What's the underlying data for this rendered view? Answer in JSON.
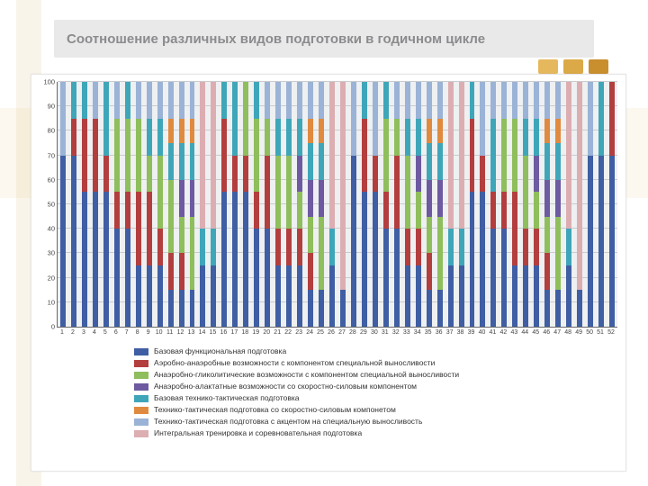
{
  "title": "Соотношение различных видов подготовки в годичном цикле",
  "accent_color": "#e1b45e",
  "chart": {
    "type": "stacked-bar",
    "ylim": [
      0,
      100
    ],
    "ytick_step": 10,
    "ylabel_fontsize": 7.5,
    "xlabel_fontsize": 7,
    "legend_fontsize": 8.5,
    "plot_background": "#eef0f1",
    "grid_color": "#c9cbce",
    "axis_color": "#6b6b6b",
    "bar_width_ratio": 0.5,
    "categories": [
      1,
      2,
      3,
      4,
      5,
      6,
      7,
      8,
      9,
      10,
      11,
      12,
      13,
      14,
      15,
      16,
      17,
      18,
      19,
      20,
      21,
      22,
      23,
      24,
      25,
      26,
      27,
      28,
      29,
      30,
      31,
      32,
      33,
      34,
      35,
      36,
      37,
      38,
      39,
      40,
      41,
      42,
      43,
      44,
      45,
      46,
      47,
      48,
      49,
      50,
      51,
      52
    ],
    "series": [
      {
        "key": "s1",
        "label": "Базовая функциональная подготовка",
        "color": "#3f5ea3"
      },
      {
        "key": "s2",
        "label": "Аэробно-анаэробные возможности с компонентом специальной выносливости",
        "color": "#b33e3e"
      },
      {
        "key": "s3",
        "label": "Анаэробно-гликолитические возможности с компонентом специальной выносливости",
        "color": "#8fbe5c"
      },
      {
        "key": "s4",
        "label": "Анаэробно-алактатные возможности со скоростно-силовым компонентом",
        "color": "#6d5aa1"
      },
      {
        "key": "s5",
        "label": "Базовая технико-тактическая подготовка",
        "color": "#3fa6b9"
      },
      {
        "key": "s6",
        "label": "Технико-тактическая подготовка со скоростно-силовым компонетом",
        "color": "#e08a3f"
      },
      {
        "key": "s7",
        "label": "Технико-тактическая подготовка с акцентом на специальную выносливость",
        "color": "#9bb3d6"
      },
      {
        "key": "s8",
        "label": "Интегральная тренировка и соревновательная подготовка",
        "color": "#dcaeb2"
      }
    ],
    "values": [
      [
        70,
        0,
        0,
        0,
        0,
        0,
        30,
        0
      ],
      [
        70,
        15,
        0,
        0,
        15,
        0,
        0,
        0
      ],
      [
        55,
        30,
        0,
        0,
        15,
        0,
        0,
        0
      ],
      [
        55,
        30,
        0,
        0,
        0,
        0,
        15,
        0
      ],
      [
        55,
        15,
        0,
        0,
        30,
        0,
        0,
        0
      ],
      [
        40,
        15,
        30,
        0,
        0,
        0,
        15,
        0
      ],
      [
        40,
        15,
        30,
        0,
        15,
        0,
        0,
        0
      ],
      [
        25,
        30,
        30,
        0,
        0,
        0,
        15,
        0
      ],
      [
        25,
        30,
        15,
        0,
        15,
        0,
        15,
        0
      ],
      [
        25,
        15,
        30,
        0,
        15,
        0,
        15,
        0
      ],
      [
        15,
        15,
        30,
        0,
        15,
        10,
        15,
        0
      ],
      [
        15,
        15,
        15,
        15,
        15,
        10,
        15,
        0
      ],
      [
        15,
        0,
        30,
        15,
        15,
        10,
        15,
        0
      ],
      [
        25,
        0,
        0,
        0,
        15,
        0,
        0,
        60
      ],
      [
        25,
        0,
        0,
        0,
        15,
        0,
        0,
        60
      ],
      [
        55,
        30,
        0,
        0,
        15,
        0,
        0,
        0
      ],
      [
        55,
        15,
        0,
        0,
        30,
        0,
        0,
        0
      ],
      [
        55,
        15,
        30,
        0,
        0,
        0,
        0,
        0
      ],
      [
        40,
        15,
        30,
        0,
        15,
        0,
        0,
        0
      ],
      [
        40,
        30,
        15,
        0,
        0,
        0,
        15,
        0
      ],
      [
        25,
        15,
        30,
        0,
        15,
        0,
        15,
        0
      ],
      [
        25,
        15,
        30,
        0,
        15,
        0,
        15,
        0
      ],
      [
        25,
        15,
        15,
        15,
        15,
        0,
        15,
        0
      ],
      [
        15,
        15,
        15,
        15,
        15,
        10,
        15,
        0
      ],
      [
        15,
        0,
        30,
        15,
        15,
        10,
        15,
        0
      ],
      [
        25,
        0,
        0,
        0,
        15,
        0,
        0,
        60
      ],
      [
        15,
        0,
        0,
        0,
        0,
        0,
        0,
        85
      ],
      [
        70,
        0,
        0,
        0,
        0,
        0,
        30,
        0
      ],
      [
        55,
        30,
        0,
        0,
        15,
        0,
        0,
        0
      ],
      [
        55,
        15,
        0,
        0,
        0,
        0,
        30,
        0
      ],
      [
        40,
        15,
        30,
        0,
        15,
        0,
        0,
        0
      ],
      [
        40,
        30,
        15,
        0,
        0,
        0,
        15,
        0
      ],
      [
        25,
        15,
        30,
        0,
        15,
        0,
        15,
        0
      ],
      [
        25,
        15,
        15,
        15,
        15,
        0,
        15,
        0
      ],
      [
        15,
        15,
        15,
        15,
        15,
        10,
        15,
        0
      ],
      [
        15,
        0,
        30,
        15,
        15,
        10,
        15,
        0
      ],
      [
        25,
        0,
        0,
        0,
        15,
        0,
        0,
        60
      ],
      [
        25,
        0,
        0,
        0,
        15,
        0,
        0,
        60
      ],
      [
        55,
        30,
        0,
        0,
        15,
        0,
        0,
        0
      ],
      [
        55,
        15,
        0,
        0,
        0,
        0,
        30,
        0
      ],
      [
        40,
        15,
        0,
        0,
        30,
        0,
        15,
        0
      ],
      [
        40,
        15,
        30,
        0,
        0,
        0,
        15,
        0
      ],
      [
        25,
        30,
        30,
        0,
        0,
        0,
        15,
        0
      ],
      [
        25,
        15,
        30,
        0,
        15,
        0,
        15,
        0
      ],
      [
        25,
        15,
        15,
        15,
        15,
        0,
        15,
        0
      ],
      [
        15,
        15,
        15,
        15,
        15,
        10,
        15,
        0
      ],
      [
        15,
        0,
        30,
        15,
        15,
        10,
        15,
        0
      ],
      [
        25,
        0,
        0,
        0,
        15,
        0,
        0,
        60
      ],
      [
        15,
        0,
        0,
        0,
        0,
        0,
        0,
        85
      ],
      [
        70,
        0,
        0,
        0,
        0,
        0,
        30,
        0
      ],
      [
        70,
        0,
        0,
        0,
        30,
        0,
        0,
        0
      ],
      [
        70,
        30,
        0,
        0,
        0,
        0,
        0,
        0
      ]
    ]
  }
}
